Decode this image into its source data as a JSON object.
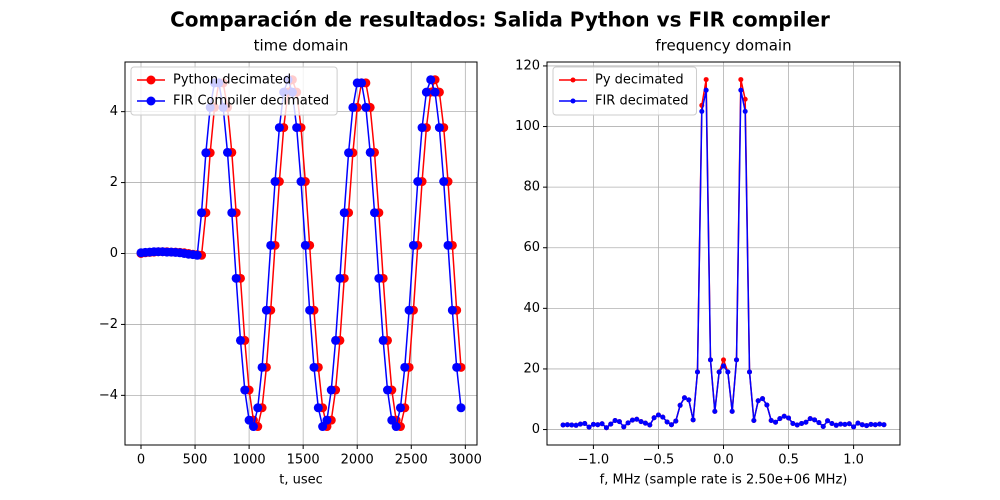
{
  "title": "Comparación de resultados: Salida Python vs FIR compiler",
  "chart_data": [
    {
      "type": "line",
      "title": "time domain",
      "x_label": "t, usec",
      "grid": true,
      "legend": "upper left",
      "x": [
        0,
        40,
        80,
        120,
        160,
        200,
        240,
        280,
        320,
        360,
        400,
        440,
        480,
        520,
        560,
        600,
        640,
        680,
        720,
        760,
        800,
        840,
        880,
        920,
        960,
        1000,
        1040,
        1080,
        1120,
        1160,
        1200,
        1240,
        1280,
        1320,
        1360,
        1400,
        1440,
        1480,
        1520,
        1560,
        1600,
        1640,
        1680,
        1720,
        1760,
        1800,
        1840,
        1880,
        1920,
        1960,
        2000,
        2040,
        2080,
        2120,
        2160,
        2200,
        2240,
        2280,
        2320,
        2360,
        2400,
        2440,
        2480,
        2520,
        2560,
        2600,
        2640,
        2680,
        2720,
        2760,
        2800,
        2840,
        2880,
        2920,
        2960
      ],
      "xlim": [
        -148,
        3108
      ],
      "xticks": [
        0,
        500,
        1000,
        1500,
        2000,
        2500,
        3000
      ],
      "ylim": [
        -5.4,
        5.4
      ],
      "yticks": [
        {
          "value": -4,
          "label": "−4"
        },
        {
          "value": -2,
          "label": "−2"
        },
        0,
        2,
        4
      ],
      "series": [
        {
          "name": "Python decimated",
          "color": "#ff0000",
          "values": [
            0,
            0.02,
            0.03,
            0.04,
            0.05,
            0.05,
            0.05,
            0.04,
            0.04,
            0.03,
            0.02,
            0,
            -0.02,
            -0.03,
            -0.05,
            1.15,
            2.84,
            4.12,
            4.81,
            4.81,
            4.12,
            2.85,
            1.15,
            -0.7,
            -2.45,
            -3.85,
            -4.7,
            -4.88,
            -4.35,
            -3.21,
            -1.6,
            0.23,
            2.03,
            3.55,
            4.55,
            4.9,
            4.55,
            3.55,
            2.03,
            0.23,
            -1.6,
            -3.21,
            -4.35,
            -4.88,
            -4.7,
            -3.85,
            -2.45,
            -0.7,
            1.15,
            2.84,
            4.12,
            4.81,
            4.81,
            4.12,
            2.85,
            1.15,
            -0.7,
            -2.45,
            -3.85,
            -4.7,
            -4.88,
            -4.35,
            -3.21,
            -1.6,
            0.23,
            2.03,
            3.55,
            4.55,
            4.9,
            4.55,
            3.55,
            2.03,
            0.23,
            -1.6,
            -3.21
          ]
        },
        {
          "name": "FIR Compiler decimated",
          "color": "#0000ff",
          "values": [
            0.02,
            0.03,
            0.04,
            0.05,
            0.05,
            0.05,
            0.04,
            0.04,
            0.03,
            0.02,
            0,
            -0.02,
            -0.03,
            -0.05,
            1.15,
            2.84,
            4.12,
            4.81,
            4.81,
            4.12,
            2.85,
            1.15,
            -0.7,
            -2.45,
            -3.85,
            -4.7,
            -4.88,
            -4.35,
            -3.21,
            -1.6,
            0.23,
            2.03,
            3.55,
            4.55,
            4.9,
            4.55,
            3.55,
            2.03,
            0.23,
            -1.6,
            -3.21,
            -4.35,
            -4.88,
            -4.7,
            -3.85,
            -2.45,
            -0.7,
            1.15,
            2.84,
            4.12,
            4.81,
            4.81,
            4.12,
            2.85,
            1.15,
            -0.7,
            -2.45,
            -3.85,
            -4.7,
            -4.88,
            -4.35,
            -3.21,
            -1.6,
            0.23,
            2.03,
            3.55,
            4.55,
            4.9,
            4.55,
            3.55,
            2.03,
            0.23,
            -1.6,
            -3.21,
            -4.35
          ]
        }
      ]
    },
    {
      "type": "line",
      "title": "frequency domain",
      "x_label": "f, MHz (sample rate is 2.50e+06 MHz)",
      "grid": true,
      "legend": "upper left",
      "x": [
        -1.2333,
        -1.2,
        -1.1667,
        -1.1333,
        -1.1,
        -1.0667,
        -1.0333,
        -1,
        -0.9667,
        -0.9333,
        -0.9,
        -0.8667,
        -0.8333,
        -0.8,
        -0.7667,
        -0.7333,
        -0.7,
        -0.6667,
        -0.6333,
        -0.6,
        -0.5667,
        -0.5333,
        -0.5,
        -0.4667,
        -0.4333,
        -0.4,
        -0.3667,
        -0.3333,
        -0.3,
        -0.2667,
        -0.2333,
        -0.2,
        -0.1667,
        -0.1333,
        -0.1,
        -0.0667,
        -0.0333,
        0,
        0.0333,
        0.0667,
        0.1,
        0.1333,
        0.1667,
        0.2,
        0.2333,
        0.2667,
        0.3,
        0.3333,
        0.3667,
        0.4,
        0.4333,
        0.4667,
        0.5,
        0.5333,
        0.5667,
        0.6,
        0.6333,
        0.6667,
        0.7,
        0.7333,
        0.7667,
        0.8,
        0.8333,
        0.8667,
        0.9,
        0.9333,
        0.9667,
        1,
        1.0333,
        1.0667,
        1.1,
        1.1333,
        1.1667,
        1.2,
        1.2333
      ],
      "xlim": [
        -1.3567,
        1.3567
      ],
      "xticks": [
        {
          "value": -1,
          "label": "−1.0"
        },
        {
          "value": -0.5,
          "label": "−0.5"
        },
        {
          "value": 0,
          "label": "0.0"
        },
        {
          "value": 0.5,
          "label": "0.5"
        },
        {
          "value": 1,
          "label": "1.0"
        }
      ],
      "ylim": [
        -5.1,
        121.3
      ],
      "yticks": [
        0,
        20,
        40,
        60,
        80,
        100,
        120
      ],
      "series": [
        {
          "name": "Py decimated",
          "color": "#ff0000",
          "values": [
            1.5,
            1.6,
            1.5,
            1.4,
            1.8,
            2.0,
            0.8,
            1.7,
            1.6,
            1.9,
            0.6,
            1.8,
            3.0,
            2.6,
            0.9,
            2.2,
            3.1,
            3.4,
            2.6,
            2.1,
            1.5,
            3.9,
            4.8,
            4.1,
            2.5,
            1.6,
            2.8,
            8.0,
            10.5,
            9.8,
            3.2,
            19,
            107,
            115.5,
            23,
            6,
            19,
            23,
            19,
            6,
            23,
            115.5,
            109,
            19,
            3,
            9.5,
            10.2,
            8.1,
            3.0,
            2.4,
            3.6,
            4.4,
            3.8,
            2.0,
            1.5,
            2.0,
            2.4,
            3.6,
            3.2,
            2.3,
            1.0,
            2.9,
            2.0,
            1.4,
            1.8,
            1.7,
            1.9,
            0.9,
            2.1,
            1.6,
            1.3,
            1.7,
            1.6,
            1.8,
            1.6
          ]
        },
        {
          "name": "FIR decimated",
          "color": "#0000ff",
          "values": [
            1.5,
            1.6,
            1.5,
            1.4,
            1.8,
            2.0,
            0.8,
            1.7,
            1.6,
            1.9,
            0.6,
            1.8,
            3.0,
            2.6,
            0.9,
            2.2,
            3.1,
            3.4,
            2.6,
            2.1,
            1.5,
            3.9,
            4.8,
            4.1,
            2.5,
            1.6,
            2.8,
            8.0,
            10.5,
            9.8,
            3.2,
            19,
            105,
            112,
            23,
            6,
            19,
            21,
            19,
            6,
            23,
            112,
            105,
            19,
            3,
            9.5,
            10.2,
            8.1,
            3.0,
            2.4,
            3.6,
            4.4,
            3.8,
            2.0,
            1.5,
            2.0,
            2.4,
            3.6,
            3.2,
            2.3,
            1.0,
            2.9,
            2.0,
            1.4,
            1.8,
            1.7,
            1.9,
            0.9,
            2.1,
            1.6,
            1.3,
            1.7,
            1.6,
            1.8,
            1.6
          ]
        }
      ]
    }
  ]
}
